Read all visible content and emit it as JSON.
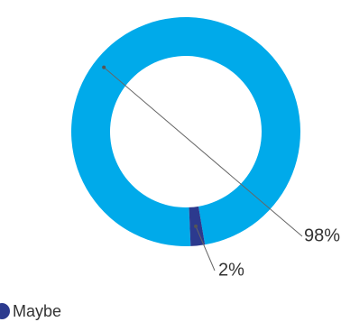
{
  "chart_data": {
    "type": "donut",
    "categories": [
      null,
      "Maybe"
    ],
    "values": [
      98,
      2
    ],
    "value_labels": [
      "98%",
      "2%"
    ],
    "colors": [
      "#00aaea",
      "#2c3a8e"
    ],
    "legend": "bottom-left"
  }
}
